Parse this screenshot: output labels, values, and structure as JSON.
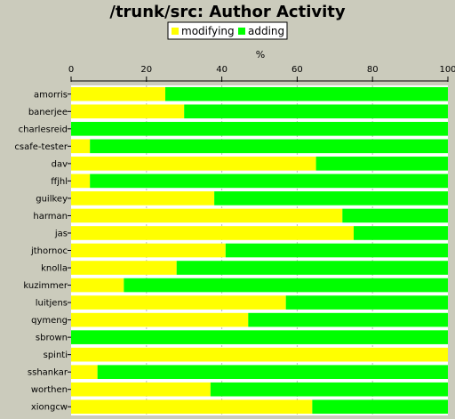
{
  "chart_data": {
    "type": "bar",
    "orientation": "horizontal",
    "stacked": true,
    "title": "/trunk/src: Author Activity",
    "xlabel": "%",
    "ylabel": "",
    "xlim": [
      0,
      100
    ],
    "xticks": [
      "0",
      "20",
      "40",
      "60",
      "80",
      "100"
    ],
    "grid": true,
    "legend_position": "top",
    "categories": [
      "amorris",
      "banerjee",
      "charlesreid",
      "csafe-tester",
      "dav",
      "ffjhl",
      "guilkey",
      "harman",
      "jas",
      "jthornoc",
      "knolla",
      "kuzimmer",
      "luitjens",
      "qymeng",
      "sbrown",
      "spinti",
      "sshankar",
      "worthen",
      "xiongcw"
    ],
    "series": [
      {
        "name": "modifying",
        "color": "#ffff00",
        "values": [
          25,
          30,
          0,
          5,
          65,
          5,
          38,
          72,
          75,
          41,
          28,
          14,
          57,
          47,
          0,
          100,
          7,
          37,
          64
        ]
      },
      {
        "name": "adding",
        "color": "#00ff00",
        "values": [
          75,
          70,
          100,
          95,
          35,
          95,
          62,
          28,
          25,
          59,
          72,
          86,
          43,
          53,
          100,
          0,
          93,
          63,
          36
        ]
      }
    ],
    "plot_background": "#ffffff",
    "page_background": "#cbcbbc"
  }
}
